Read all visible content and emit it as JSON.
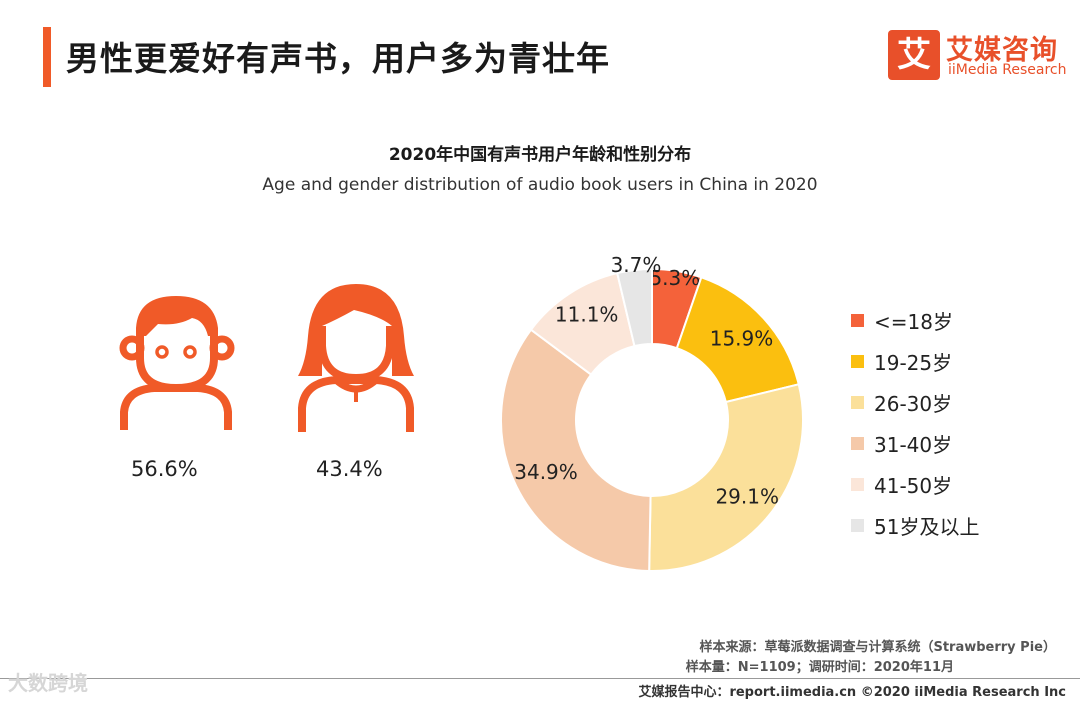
{
  "header": {
    "title": "男性更爱好有声书，用户多为青壮年",
    "logo_mark": "艾",
    "logo_cn": "艾媒咨询",
    "logo_en": "iiMedia Research"
  },
  "gender": {
    "male_pct": "56.6%",
    "female_pct": "43.4%"
  },
  "chart_data": {
    "type": "pie",
    "title": "2020年中国有声书用户年龄和性别分布",
    "subtitle": "Age and gender distribution of audio book users in China in 2020",
    "categories": [
      "<=18岁",
      "19-25岁",
      "26-30岁",
      "31-40岁",
      "41-50岁",
      "51岁及以上"
    ],
    "values": [
      5.3,
      15.9,
      29.1,
      34.9,
      11.1,
      3.7
    ],
    "labels": [
      "5.3%",
      "15.9%",
      "29.1%",
      "34.9%",
      "11.1%",
      "3.7%"
    ],
    "colors": [
      "#f4623a",
      "#fbbf0f",
      "#fbe09a",
      "#f5c9a9",
      "#fbe6d9",
      "#e6e6e6"
    ],
    "donut": true,
    "legend_position": "right"
  },
  "footer": {
    "source_line": "样本来源：草莓派数据调查与计算系统（Strawberry Pie）",
    "sample_line": "样本量：N=1109；调研时间：2020年11月",
    "site_line": "艾媒报告中心：report.iimedia.cn   ©2020  iiMedia Research  Inc",
    "watermark": "大数跨境"
  },
  "colors": {
    "accent": "#f05a28",
    "icon": "#f05a28"
  }
}
